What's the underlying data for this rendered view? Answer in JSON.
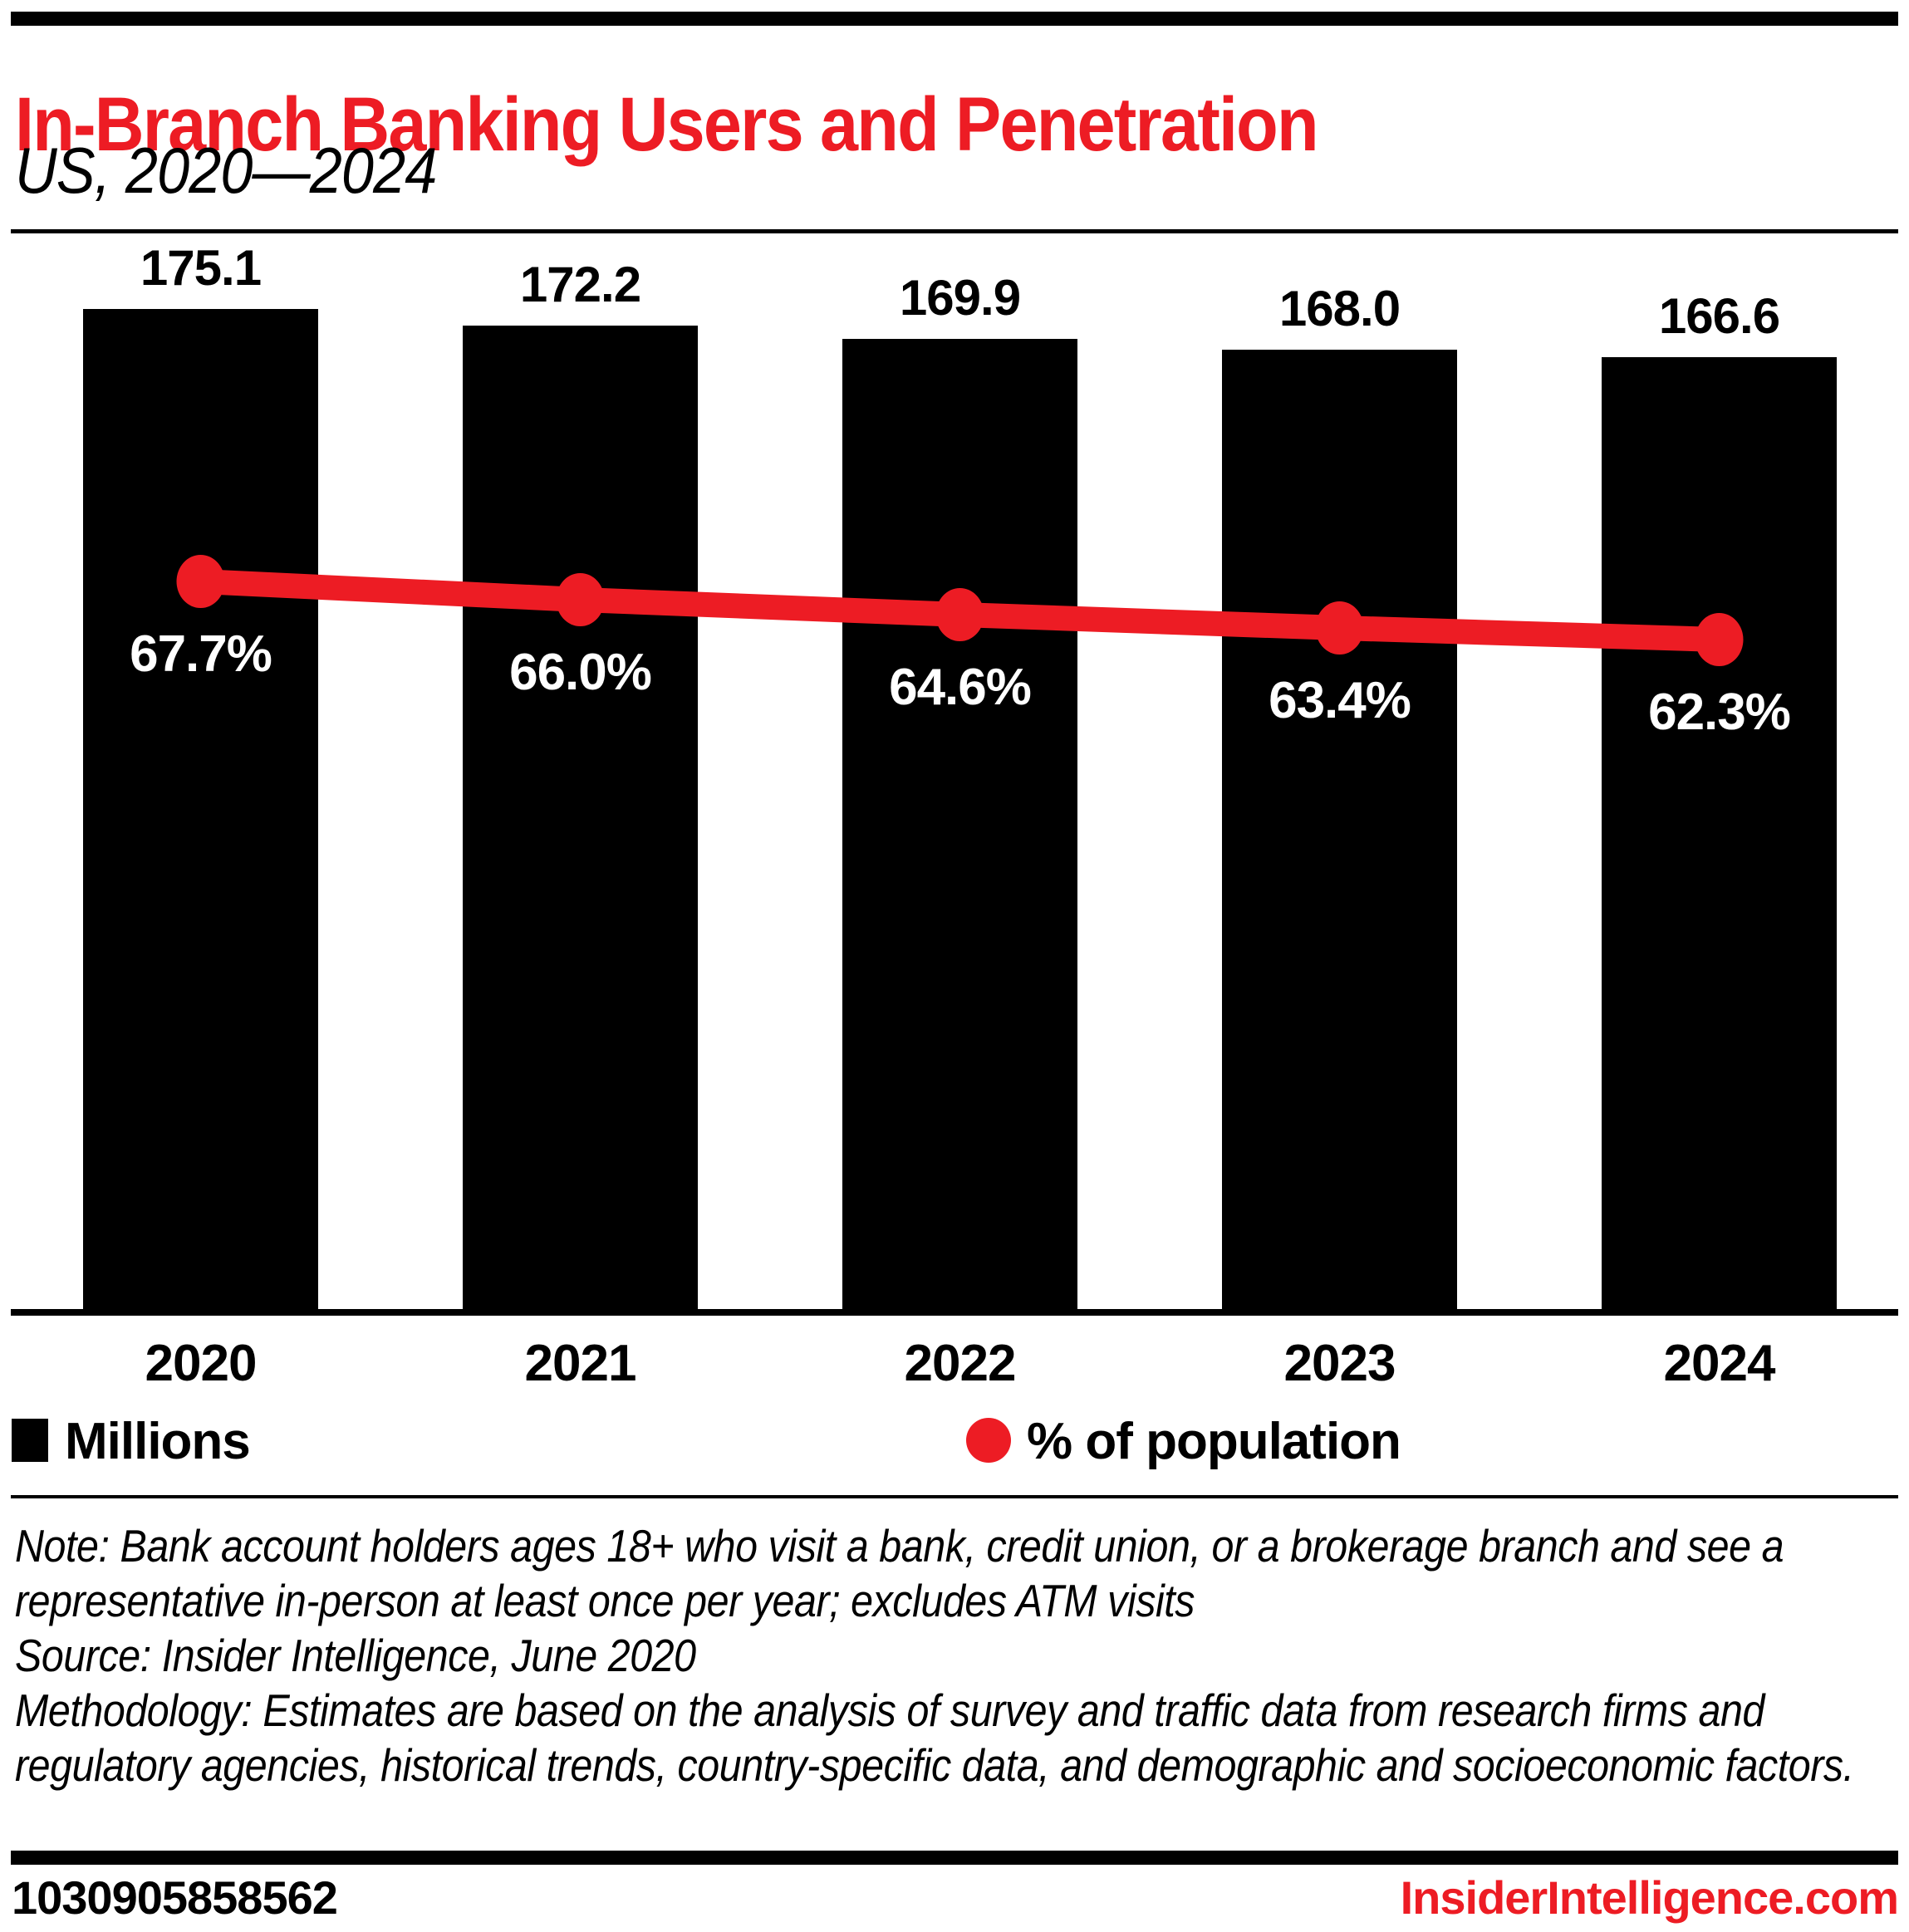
{
  "header": {
    "title": "In-Branch Banking Users and Penetration",
    "subtitle": "US, 2020—2024"
  },
  "chart_data": {
    "type": "bar",
    "subtype": "combo-bar-line",
    "categories": [
      "2020",
      "2021",
      "2022",
      "2023",
      "2024"
    ],
    "series": [
      {
        "name": "Millions",
        "type": "bar",
        "values": [
          175.1,
          172.2,
          169.9,
          168.0,
          166.6
        ],
        "labels": [
          "175.1",
          "172.2",
          "169.9",
          "168.0",
          "166.6"
        ],
        "color": "#000000",
        "label_color": "#000000"
      },
      {
        "name": "% of population",
        "type": "line",
        "values": [
          67.7,
          66.0,
          64.6,
          63.4,
          62.3
        ],
        "labels": [
          "67.7%",
          "66.0%",
          "64.6%",
          "63.4%",
          "62.3%"
        ],
        "color": "#ed1c24",
        "label_color": "#ffffff"
      }
    ],
    "title": "In-Branch Banking Users and Penetration",
    "subtitle": "US, 2020—2024",
    "xlabel": "",
    "ylabel": "",
    "bar_ylim": [
      0,
      229
    ],
    "line_ylim": [
      0,
      100
    ],
    "grid": false,
    "y_axis_visible": false,
    "legend_position": "bottom",
    "legend": [
      {
        "label": "Millions",
        "swatch": "square",
        "color": "#000000"
      },
      {
        "label": "% of population",
        "swatch": "circle",
        "color": "#ed1c24"
      }
    ]
  },
  "footnotes": {
    "note": "Note: Bank account holders ages 18+ who visit a bank, credit union, or a brokerage branch and see a representative in-person at least once per year; excludes ATM visits",
    "source": "Source: Insider Intelligence, June 2020",
    "methodology": "Methodology: Estimates are based on the analysis of survey and traffic data from research firms and regulatory agencies, historical trends, country-specific data, and demographic and socioeconomic factors."
  },
  "footer": {
    "id": "1030905858562",
    "site": "InsiderIntelligence.com"
  },
  "colors": {
    "accent_red": "#ed1c24",
    "bar_black": "#000000",
    "background": "#ffffff"
  }
}
